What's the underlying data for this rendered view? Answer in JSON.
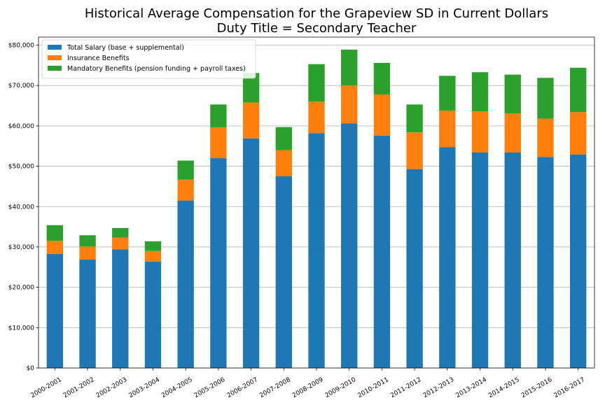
{
  "chart_data": {
    "type": "bar",
    "stacked": true,
    "title": "Historical Average Compensation for the Grapeview SD in Current Dollars",
    "subtitle": "Duty Title = Secondary Teacher",
    "xlabel": "",
    "ylabel": "",
    "ylim": [
      0,
      82000
    ],
    "yticks": [
      0,
      10000,
      20000,
      30000,
      40000,
      50000,
      60000,
      70000,
      80000
    ],
    "ytick_labels": [
      "$0",
      "$10,000",
      "$20,000",
      "$30,000",
      "$40,000",
      "$50,000",
      "$60,000",
      "$70,000",
      "$80,000"
    ],
    "grid": "horizontal",
    "legend_position": "top-left",
    "categories": [
      "2000-2001",
      "2001-2002",
      "2002-2003",
      "2003-2004",
      "2004-2005",
      "2005-2006",
      "2006-2007",
      "2007-2008",
      "2008-2009",
      "2009-2010",
      "2010-2011",
      "2011-2012",
      "2012-2013",
      "2013-2014",
      "2014-2015",
      "2015-2016",
      "2016-2017"
    ],
    "series": [
      {
        "name": "Total Salary (base + supplemental)",
        "color": "#1f77b4",
        "values": [
          28300,
          26900,
          29400,
          26400,
          41500,
          52000,
          56900,
          47500,
          58200,
          60600,
          57600,
          49300,
          54700,
          53400,
          53400,
          52300,
          52900
        ]
      },
      {
        "name": "Insurance Benefits",
        "color": "#ff7f0e",
        "values": [
          3200,
          3200,
          2900,
          2600,
          5200,
          7600,
          8900,
          6500,
          7800,
          9400,
          10200,
          9100,
          9100,
          10200,
          9700,
          9500,
          10500
        ]
      },
      {
        "name": "Mandatory Benefits (pension funding + payroll taxes)",
        "color": "#2ca02c",
        "values": [
          3900,
          2800,
          2400,
          2400,
          4700,
          5700,
          7300,
          5700,
          9300,
          8900,
          7800,
          6900,
          8600,
          9700,
          9600,
          10100,
          11000
        ]
      }
    ]
  }
}
